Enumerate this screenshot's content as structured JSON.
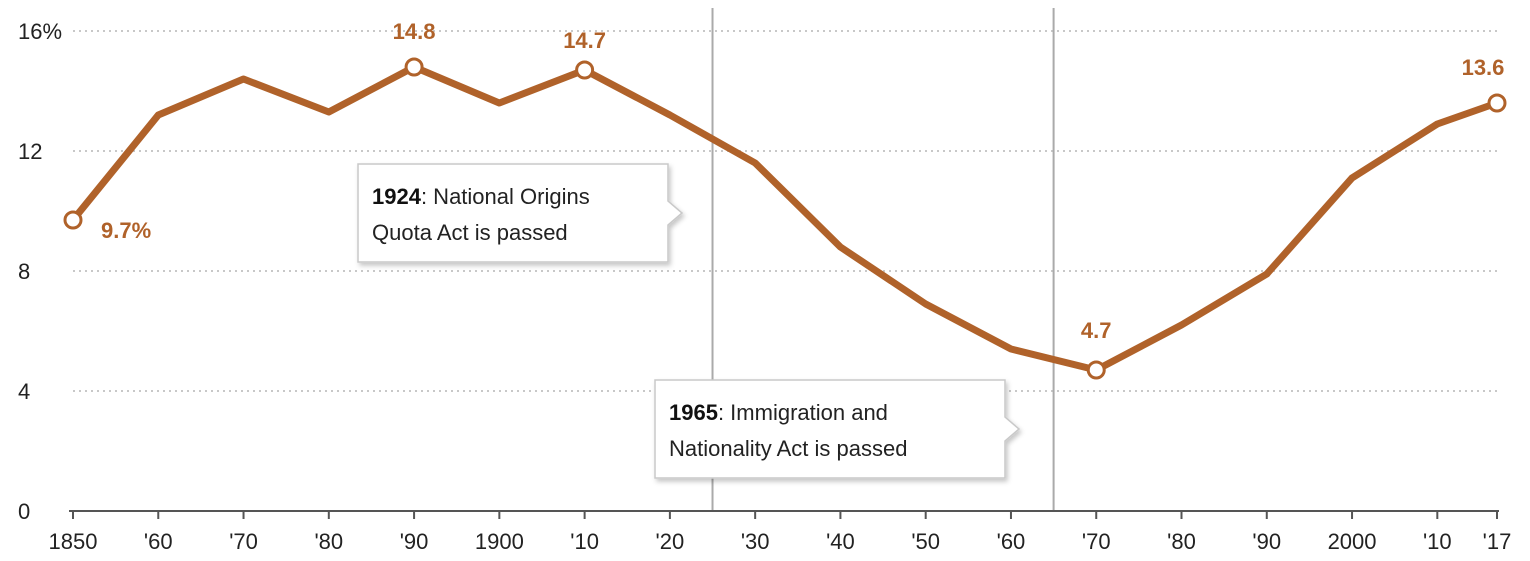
{
  "chart_data": {
    "type": "line",
    "x_tick_labels": [
      "1850",
      "'60",
      "'70",
      "'80",
      "'90",
      "1900",
      "'10",
      "'20",
      "'30",
      "'40",
      "'50",
      "'60",
      "'70",
      "'80",
      "'90",
      "2000",
      "'10",
      "'17"
    ],
    "x": [
      1850,
      1860,
      1870,
      1880,
      1890,
      1900,
      1910,
      1920,
      1930,
      1940,
      1950,
      1960,
      1970,
      1980,
      1990,
      2000,
      2010,
      2017
    ],
    "series": [
      {
        "values": [
          9.7,
          13.2,
          14.4,
          13.3,
          14.8,
          13.6,
          14.7,
          13.2,
          11.6,
          8.8,
          6.9,
          5.4,
          4.7,
          6.2,
          7.9,
          11.1,
          12.9,
          13.6
        ]
      }
    ],
    "ylim": [
      0,
      16
    ],
    "y_ticks": [
      0,
      4,
      8,
      12,
      16
    ],
    "y_tick_labels": [
      "0",
      "4",
      "8",
      "12",
      "16%"
    ],
    "grid": "horizontal dotted",
    "highlight_points": [
      {
        "x": 1850,
        "label": "9.7%"
      },
      {
        "x": 1890,
        "label": "14.8"
      },
      {
        "x": 1910,
        "label": "14.7"
      },
      {
        "x": 1970,
        "label": "4.7"
      },
      {
        "x": 2017,
        "label": "13.6"
      }
    ],
    "annotations": [
      {
        "x": 1925,
        "bold": "1924",
        "line1": ": National Origins",
        "line2": "Quota Act is passed"
      },
      {
        "x": 1965,
        "bold": "1965",
        "line1": ": Immigration and",
        "line2": "Nationality Act is passed"
      }
    ],
    "colors": {
      "line": "#b0622a",
      "label": "#b0622a",
      "grid": "#c8c8c8",
      "axis": "#555555",
      "marker_fill": "#ffffff"
    }
  }
}
